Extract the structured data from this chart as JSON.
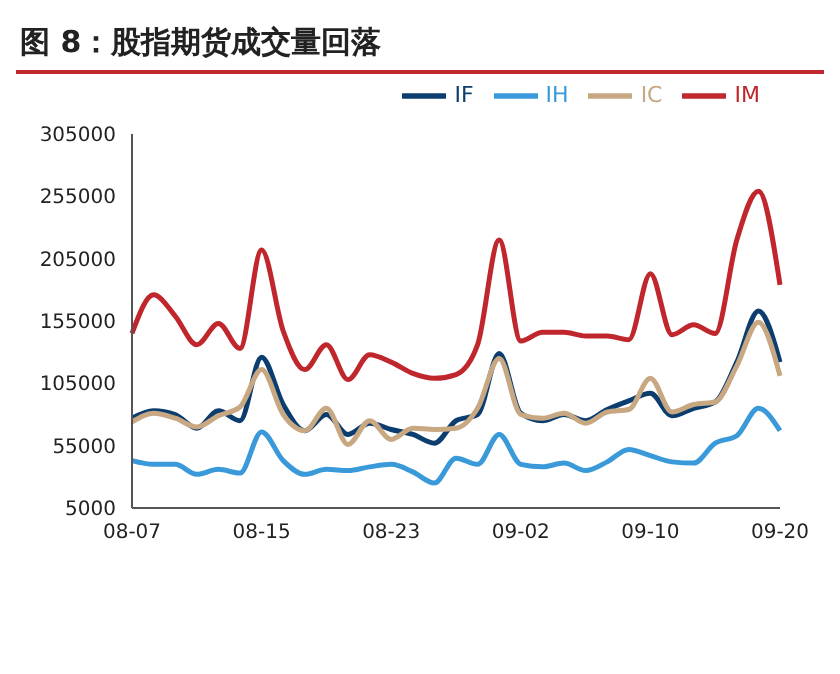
{
  "chart_data": {
    "type": "line",
    "title": "图 8：股指期货成交量回落",
    "categories": [
      "08-07",
      null,
      null,
      null,
      null,
      null,
      "08-15",
      null,
      null,
      null,
      null,
      null,
      "08-23",
      null,
      null,
      null,
      null,
      null,
      "09-02",
      null,
      null,
      null,
      null,
      null,
      "09-10",
      null,
      null,
      null,
      null,
      null,
      "09-20"
    ],
    "series": [
      {
        "name": "IF",
        "color": "#0b3d6e",
        "values": [
          77000,
          83000,
          80000,
          69000,
          83000,
          75000,
          126000,
          88000,
          67000,
          80000,
          64000,
          73000,
          68000,
          64000,
          57000,
          75000,
          80000,
          129000,
          81000,
          75000,
          80000,
          75000,
          84000,
          91000,
          97000,
          79000,
          85000,
          90000,
          122000,
          163000,
          122000
        ]
      },
      {
        "name": "IH",
        "color": "#3a9ad9",
        "values": [
          43000,
          40000,
          40000,
          32000,
          36000,
          33000,
          66000,
          43000,
          32000,
          36000,
          35000,
          38000,
          40000,
          34000,
          25000,
          45000,
          40000,
          64000,
          40000,
          38000,
          41000,
          35000,
          42000,
          52000,
          47000,
          42000,
          41000,
          57000,
          63000,
          85000,
          67000
        ]
      },
      {
        "name": "IC",
        "color": "#c8a882",
        "values": [
          74000,
          81000,
          77000,
          70000,
          79000,
          86000,
          116000,
          80000,
          67000,
          85000,
          56000,
          75000,
          60000,
          69000,
          68000,
          69000,
          85000,
          125000,
          80000,
          77000,
          81000,
          73000,
          82000,
          84000,
          109000,
          82000,
          88000,
          90000,
          119000,
          154000,
          111000
        ]
      },
      {
        "name": "IM",
        "color": "#c0272d",
        "values": [
          145000,
          176000,
          159000,
          136000,
          153000,
          133000,
          212000,
          147000,
          116000,
          136000,
          108000,
          128000,
          122000,
          113000,
          109000,
          112000,
          136000,
          220000,
          139000,
          146000,
          146000,
          143000,
          143000,
          140000,
          193000,
          144000,
          152000,
          145000,
          220000,
          259000,
          184000
        ]
      }
    ],
    "ylim": [
      5000,
      305000
    ],
    "yticks": [
      5000,
      55000,
      105000,
      155000,
      205000,
      255000,
      305000
    ],
    "grid": false,
    "legend": "top",
    "marker": "none",
    "line_style": "solid"
  }
}
